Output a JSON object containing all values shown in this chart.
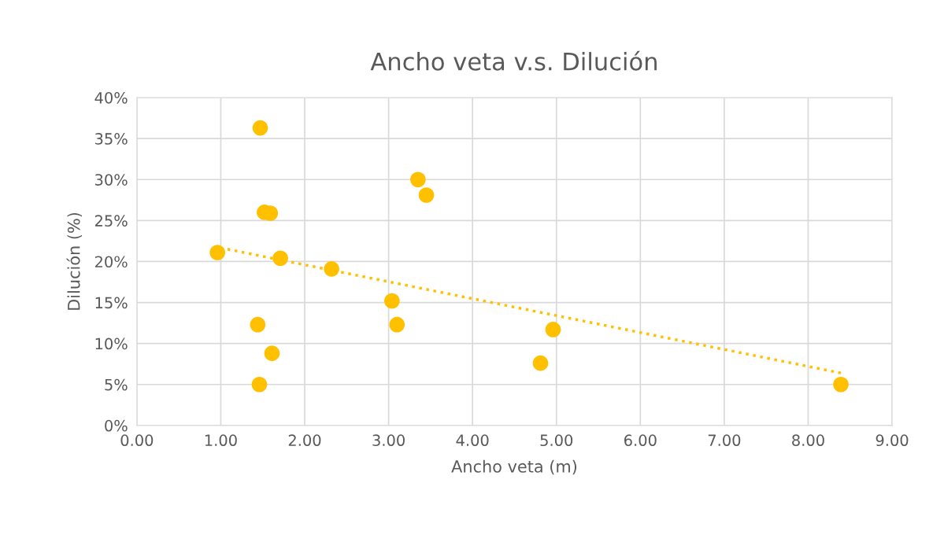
{
  "chart_data": {
    "type": "scatter",
    "title": "Ancho veta v.s. Dilución",
    "xlabel": "Ancho veta (m)",
    "ylabel": "Dilución (%)",
    "xlim": [
      0,
      9
    ],
    "xticks": [
      {
        "value": 0,
        "label": "0.00"
      },
      {
        "value": 1,
        "label": "1.00"
      },
      {
        "value": 2,
        "label": "2.00"
      },
      {
        "value": 3,
        "label": "3.00"
      },
      {
        "value": 4,
        "label": "4.00"
      },
      {
        "value": 5,
        "label": "5.00"
      },
      {
        "value": 6,
        "label": "6.00"
      },
      {
        "value": 7,
        "label": "7.00"
      },
      {
        "value": 8,
        "label": "8.00"
      },
      {
        "value": 9,
        "label": "9.00"
      }
    ],
    "ylim": [
      0,
      40
    ],
    "yticks": [
      {
        "value": 0,
        "label": "0%"
      },
      {
        "value": 5,
        "label": "5%"
      },
      {
        "value": 10,
        "label": "10%"
      },
      {
        "value": 15,
        "label": "15%"
      },
      {
        "value": 20,
        "label": "20%"
      },
      {
        "value": 25,
        "label": "25%"
      },
      {
        "value": 30,
        "label": "30%"
      },
      {
        "value": 35,
        "label": "35%"
      },
      {
        "value": 40,
        "label": "40%"
      }
    ],
    "grid": true,
    "legend": false,
    "series": [
      {
        "color": "#ffc000",
        "marker": "circle",
        "x": [
          1.47,
          0.96,
          1.52,
          1.59,
          1.71,
          2.32,
          3.35,
          3.45,
          3.04,
          3.1,
          1.44,
          1.61,
          1.46,
          4.96,
          4.81,
          8.39
        ],
        "values": [
          36.3,
          21.1,
          26.0,
          25.9,
          20.4,
          19.1,
          30.0,
          28.1,
          15.2,
          12.3,
          12.3,
          8.8,
          5.0,
          11.7,
          7.6,
          5.0
        ]
      },
      {
        "type": "line",
        "color": "#ffc000",
        "marker": "none",
        "line_style": "dotted",
        "x": [
          1.08,
          8.39
        ],
        "values": [
          21.5,
          6.4
        ]
      }
    ]
  }
}
